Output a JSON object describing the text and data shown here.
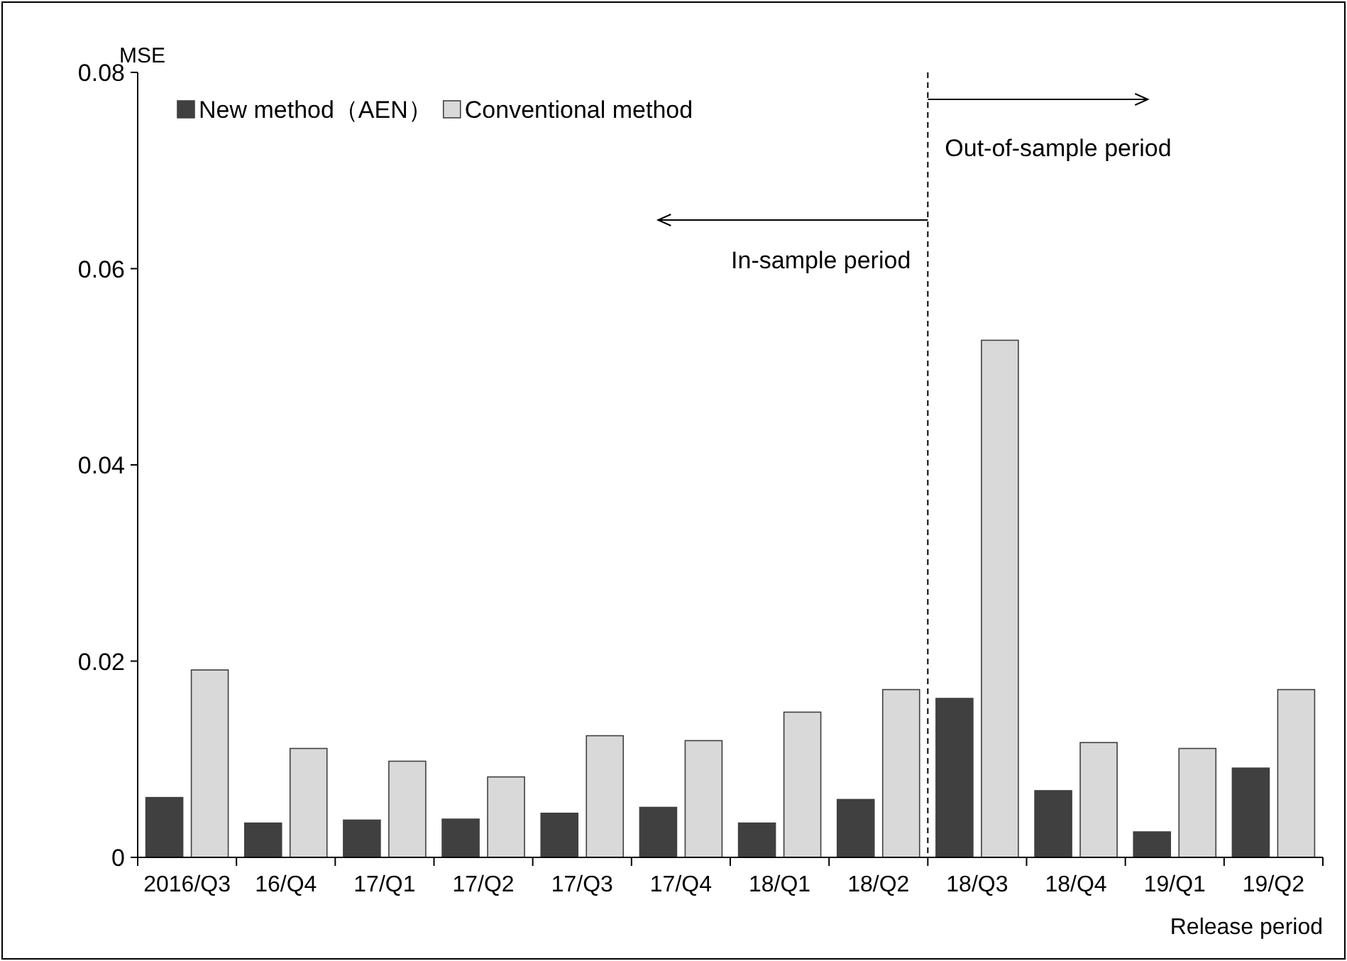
{
  "chart_data": {
    "type": "bar",
    "ylabel": "MSE",
    "xlabel": "Release period",
    "categories": [
      "2016/Q3",
      "16/Q4",
      "17/Q1",
      "17/Q2",
      "17/Q3",
      "17/Q4",
      "18/Q1",
      "18/Q2",
      "18/Q3",
      "18/Q4",
      "19/Q1",
      "19/Q2"
    ],
    "series": [
      {
        "name": "New method（AEN）",
        "color": "#404040",
        "values": [
          0.0061,
          0.0035,
          0.0038,
          0.0039,
          0.0045,
          0.0051,
          0.0035,
          0.0059,
          0.0162,
          0.0068,
          0.0026,
          0.0091
        ]
      },
      {
        "name": "Conventional method",
        "color": "#d9d9d9",
        "values": [
          0.0191,
          0.0111,
          0.0098,
          0.0082,
          0.0124,
          0.0119,
          0.0148,
          0.0171,
          0.0527,
          0.0117,
          0.0111,
          0.0171
        ]
      }
    ],
    "ylim": [
      0,
      0.08
    ],
    "yticks": [
      {
        "value": 0,
        "label": "0"
      },
      0.02,
      0.04,
      0.06,
      0.08
    ],
    "annotations": [
      "Out-of-sample period",
      "In-sample period"
    ],
    "legend": "top left",
    "grid": false
  }
}
